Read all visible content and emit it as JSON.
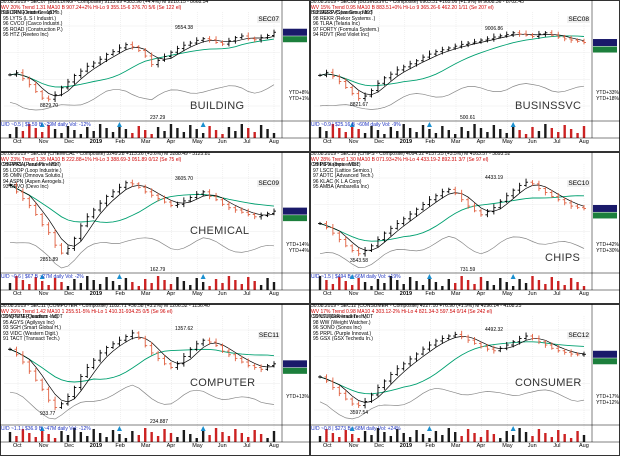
{
  "colors": {
    "up": "#000000",
    "down": "#e06040",
    "ma10": "#000000",
    "ma40": "#00a070",
    "rs": "#888888",
    "vol_up": "#1a1a1a",
    "vol_down": "#cc2222",
    "arrow": "#1a90d0",
    "price_tag": "#1a1a6a"
  },
  "months": [
    "Oct",
    "Nov",
    "Dec",
    "2019",
    "Feb",
    "Mar",
    "Apr",
    "May",
    "Jun",
    "Jul",
    "Aug"
  ],
  "panels": [
    {
      "code": "SEC07",
      "name": "BUILDING",
      "line1": "30.08.2019 - SEC07 (BUILDING - Composite)  9113.69 +383.96 (+4.4%)  M 9210.15 - 8668.54",
      "line2": "WV 20%  Trend 1.31  MA10 B 907.24+2%  Hi-Lo 9 355.15-6 376.70  5/6  (Se 122 el)",
      "line3": "BUILDING leaders - MDT",
      "members": [
        "96 ORN (Orion Group Ho.)",
        "95 LYTS (L S I Industri.)",
        "96 CVCO (Cavco Industri.)",
        "95 ROAD (Construction P.)",
        "95 HTZ (Reeteo Inc)"
      ],
      "hi": "9554.38",
      "lo": "8829.70",
      "ytd": [
        "YTD+8%",
        "YTD+1%"
      ],
      "vol": "U/D ~0.5  | $5.59 B  ~29M daily  Vol: -12%",
      "volhi": "237.29",
      "chart_data": {
        "type": "candlestick",
        "closes": [
          8830,
          8870,
          8760,
          8650,
          8520,
          8400,
          8380,
          8460,
          8590,
          8700,
          8820,
          8900,
          8990,
          9050,
          9120,
          9210,
          9260,
          9330,
          9390,
          9350,
          9280,
          9180,
          9020,
          9100,
          9170,
          9250,
          9320,
          9380,
          9420,
          9470,
          9500,
          9480,
          9430,
          9400,
          9460,
          9520,
          9550,
          9500,
          9480,
          9520,
          9560,
          9620
        ]
      }
    },
    {
      "code": "SEC08",
      "name": "BUSINSSVC",
      "line1": "30.08.2019 - SEC08 (BUSINSSVC - Composite)  6903.31 +165.06 (+1.9%)  M 9008.36 - 8702.45",
      "line2": "WV 15%  Trend 0.95  MA10 B 883.51+0%  Hi-Lo 9 365.26-6 462.20  1/11  (Se 207 el)",
      "line3": "BUSINSSVC leaders - MDT",
      "members": [
        "99 SGRP (Spar Group Inc)",
        "98 REKR (Rekor Systems .)",
        "96 TLRA (Telaria Inc)",
        "97 FORTY (Formula System.)",
        "94 RDVT (Red Violet Inc)"
      ],
      "hi": "9006.86",
      "lo": "8821.67",
      "ytd": [
        "YTD+33%",
        "YTD+18%"
      ],
      "vol": "U/D ~0.9  | $25.16 B  ~60M daily  Vol: -9%",
      "volhi": "500.61",
      "chart_data": {
        "type": "candlestick",
        "closes": [
          8600,
          8650,
          8580,
          8500,
          8400,
          8300,
          8220,
          8260,
          8350,
          8470,
          8560,
          8620,
          8690,
          8740,
          8790,
          8840,
          8900,
          8950,
          8990,
          9020,
          9050,
          9080,
          9110,
          9130,
          9150,
          9180,
          9200,
          9230,
          9250,
          9270,
          9300,
          9280,
          9260,
          9240,
          9280,
          9300,
          9260,
          9230,
          9200,
          9180,
          9160,
          9140
        ]
      }
    },
    {
      "code": "SEC09",
      "name": "CHEMICAL",
      "line1": "30.08.2019 - SEC09 (CHEMICAL - Composite)  3249.28 +113.26 (+3.6%)  M 3288.49 - 3125.81",
      "line2": "WV 23%  Trend 1.35  MA10 B 222.88+1%  Hi-Lo 3 388.69-3 051.89  0/12  (Se 75 el)",
      "line3": "CHEMICAL leaders - MDT",
      "members": [
        "99 FPRL (Parui Pline Ho.)",
        "95 LOOP (Loop Industrie.)",
        "95 OMN (Omnova Solutio.)",
        "94 ASPN (Aspen Aerogels.)",
        "93 DEVO (Devo Inc)"
      ],
      "hi": "3605.70",
      "lo": "2851.89",
      "ytd": [
        "YTD+14%",
        "YTD+4%"
      ],
      "vol": "U/D ~0.6  | $67 B  ~27M daily  Vol: -2%",
      "volhi": "162.79",
      "chart_data": {
        "type": "candlestick",
        "closes": [
          3480,
          3420,
          3360,
          3300,
          3220,
          3130,
          3060,
          2950,
          2880,
          2920,
          3010,
          3120,
          3200,
          3260,
          3320,
          3380,
          3420,
          3460,
          3500,
          3490,
          3460,
          3420,
          3390,
          3360,
          3330,
          3300,
          3310,
          3340,
          3370,
          3400,
          3420,
          3380,
          3350,
          3310,
          3280,
          3260,
          3240,
          3220,
          3200,
          3210,
          3230,
          3250
        ]
      }
    },
    {
      "code": "SEC10",
      "name": "CHIPS",
      "line1": "30.08.2019 - SEC10 (CHIPS - Composite)  4094.32 +137.25 (+3.5%)  M 4163.57 - 3893.52",
      "line2": "WV 28%  Trend 1.30  MA10 B 071.93+2%  Hi-Lo 4 433.19-2 892.31  3/7  (Se 97 el)",
      "line3": "CHIPS leaders - MDT",
      "members": [
        "99 INPX (Inpixon Inc)",
        "97 LSCC (Lattice Semico.)",
        "97 ADTC (Advanced Tech.)",
        "96 KLAC (K L A Corp)",
        "95 AMBA (Ambarella Inc)"
      ],
      "hi": "4433.19",
      "lo": "3543.58",
      "ytd": [
        "YTD+42%",
        "YTD+30%"
      ],
      "vol": "U/D ~1.5  | $494 B  ~66M daily  Vol: +19%",
      "volhi": "731.59",
      "chart_data": {
        "type": "candlestick",
        "closes": [
          3900,
          3850,
          3780,
          3700,
          3620,
          3560,
          3520,
          3560,
          3620,
          3700,
          3780,
          3840,
          3900,
          3960,
          4020,
          4080,
          4140,
          4200,
          4250,
          4300,
          4330,
          4280,
          4200,
          4120,
          4060,
          4010,
          4050,
          4100,
          4180,
          4250,
          4320,
          4380,
          4420,
          4400,
          4340,
          4290,
          4240,
          4200,
          4160,
          4120,
          4100,
          4090
        ]
      }
    },
    {
      "code": "SEC11",
      "name": "COMPUTER",
      "line1": "30.08.2019 - SEC11 (COMPUTER - Composite)  1182.71 +36.58 (+3.2%)  M 1206.32 - 1136.40",
      "line2": "WV 26%  Trend 1.42  MA10 1 255.51-5%  Hi-Lo 1 410.31-934.25  0/5  (Se 96 el)",
      "line3": "COMPUTER leaders - MDT",
      "members": [
        "99 QTRM (Quantum Inc)",
        "95 AGYS (Agilysys Inc)",
        "93 SGH (Smart Global H.)",
        "93 VIDC (Western Digit.)",
        "91 TACT (Transact Tech.)"
      ],
      "hi": "1357.62",
      "lo": "933.77",
      "ytd": [
        "YTD+13%"
      ],
      "vol": "U/D ~1.1  | $36.9 B  ~47M daily  Vol: -12%",
      "volhi": "234.887",
      "chart_data": {
        "type": "candlestick",
        "closes": [
          1260,
          1230,
          1190,
          1140,
          1090,
          1040,
          980,
          940,
          960,
          1000,
          1050,
          1110,
          1160,
          1200,
          1240,
          1270,
          1290,
          1310,
          1330,
          1350,
          1320,
          1280,
          1240,
          1210,
          1180,
          1160,
          1180,
          1220,
          1260,
          1290,
          1310,
          1300,
          1280,
          1250,
          1230,
          1210,
          1190,
          1170,
          1160,
          1150,
          1170,
          1180
        ]
      }
    },
    {
      "code": "SEC12",
      "name": "CONSUMER",
      "line1": "30.08.2019 - SEC12 (CONSUMER - Composite)  4227.10 +76.90 (+1.9%)  M 4296.14 - 4108.25",
      "line2": "WV 17%  Trend 0.98  MA10 4 303.12-2%  Hi-Lo 4 821.34-3 597.54  0/14  (Se 242 el)",
      "line3": "CONSUMER leaders - MDT",
      "members": [
        "99 UTI (Universal Tech.)",
        "98 WW (Weight Watcher.)",
        "96 SONO (Sonos Inc)",
        "95 PRPL (Purple Innovat.)",
        "95 GSX (GSX Techedu In.)"
      ],
      "hi": "4492.32",
      "lo": "3597.54",
      "ytd": [
        "YTD+17%",
        "YTD+12%"
      ],
      "vol": "U/D ~0.8  | $273 B  ~68M daily  Vol: +24%",
      "volhi": "",
      "chart_data": {
        "type": "candlestick",
        "closes": [
          3950,
          3900,
          3820,
          3750,
          3680,
          3620,
          3600,
          3650,
          3730,
          3820,
          3900,
          3980,
          4050,
          4110,
          4170,
          4230,
          4290,
          4340,
          4390,
          4420,
          4450,
          4470,
          4440,
          4400,
          4360,
          4320,
          4290,
          4270,
          4300,
          4340,
          4380,
          4420,
          4450,
          4420,
          4380,
          4340,
          4300,
          4270,
          4250,
          4230,
          4220,
          4227
        ]
      }
    }
  ]
}
